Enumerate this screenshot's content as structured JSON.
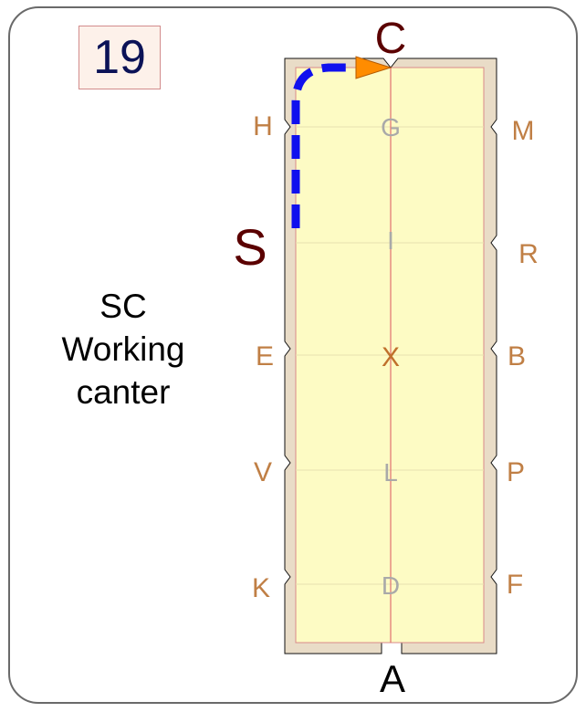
{
  "card": {
    "number": "19",
    "caption": [
      "SC",
      "Working",
      "canter"
    ]
  },
  "arena": {
    "entry_letter": "A",
    "top_letter": "C",
    "start_marker": "S",
    "left_letters": [
      "H",
      "E",
      "V",
      "K"
    ],
    "right_letters": [
      "M",
      "R",
      "B",
      "P",
      "F"
    ],
    "centerline_letters": [
      "G",
      "I",
      "X",
      "L",
      "D"
    ]
  },
  "colors": {
    "arena_fill": "#fdfbc4",
    "arena_border": "#d9d1b8",
    "letter_brown": "#c07f45",
    "centerline_gray": "#a9a9a9",
    "x_orange": "#c0702c",
    "dark_red_letters": "#5b0000",
    "path_blue": "#1010ee",
    "arrow_orange": "#ff8c00",
    "centerline_red": "#e07070"
  }
}
